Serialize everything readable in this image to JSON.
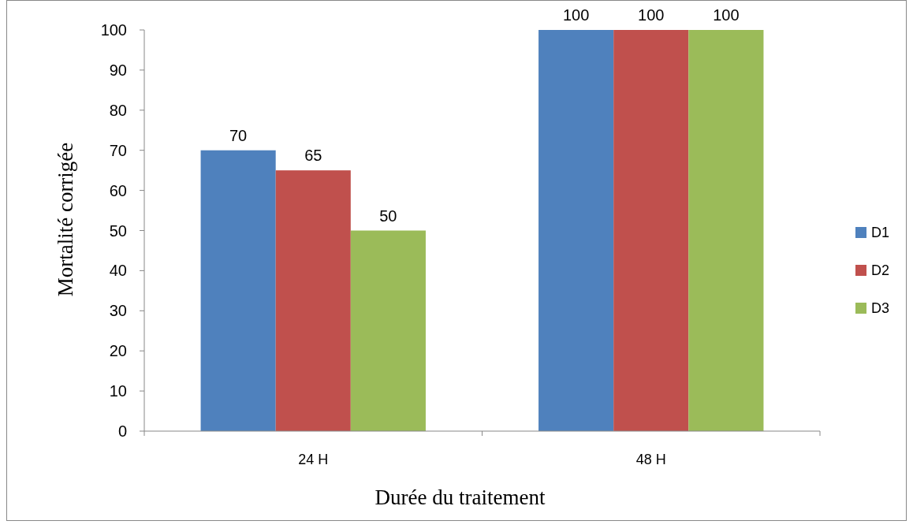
{
  "chart_data": {
    "type": "bar",
    "xlabel": "Durée du traitement",
    "ylabel": "Mortalité corrigée",
    "categories": [
      "24 H",
      "48 H"
    ],
    "series": [
      {
        "name": "D1",
        "color": "#4f81bd",
        "values": [
          70,
          100
        ]
      },
      {
        "name": "D2",
        "color": "#c0504d",
        "values": [
          65,
          100
        ]
      },
      {
        "name": "D3",
        "color": "#9bbb59",
        "values": [
          50,
          100
        ]
      }
    ],
    "ylim": [
      0,
      100
    ],
    "yticks": [
      0,
      10,
      20,
      30,
      40,
      50,
      60,
      70,
      80,
      90,
      100
    ],
    "grid": false,
    "legend": "right",
    "data_labels": true
  }
}
